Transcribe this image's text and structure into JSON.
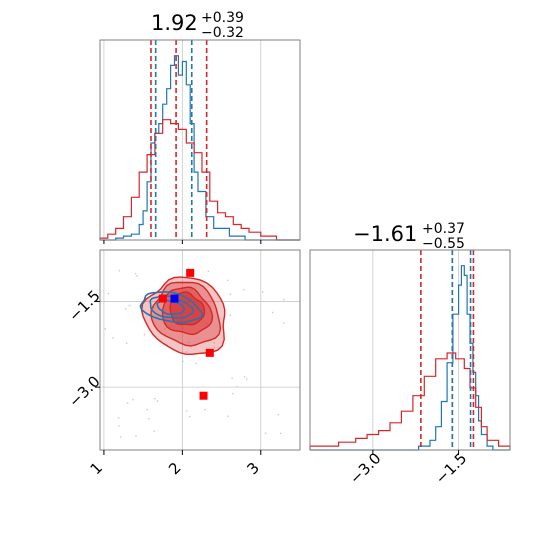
{
  "colors": {
    "posterior": "#d62728",
    "prior": "#1f77b4",
    "truth_marker": "#ff0000",
    "estimate_marker": "#0000ff",
    "grid": "#c8c8c8",
    "axes": "#808080"
  },
  "chart_data": [
    {
      "type": "corner",
      "panel": "histogram",
      "parameter_index": 0,
      "title": {
        "value": "1.92",
        "plus": "+0.39",
        "minus": "−0.32"
      },
      "xlim": [
        0.95,
        3.5
      ],
      "grid": true,
      "series": [
        {
          "color": "#1f77b4",
          "bin_edges": [
            0.95,
            1.15,
            1.25,
            1.35,
            1.45,
            1.5,
            1.55,
            1.6,
            1.65,
            1.7,
            1.75,
            1.8,
            1.85,
            1.9,
            1.95,
            2.0,
            2.05,
            2.1,
            2.15,
            2.2,
            2.3,
            2.4,
            2.6,
            2.8,
            3.5
          ],
          "density": [
            0.0,
            0.01,
            0.02,
            0.03,
            0.08,
            0.15,
            0.3,
            0.5,
            0.55,
            0.6,
            0.7,
            0.78,
            0.9,
            0.95,
            0.85,
            0.92,
            0.8,
            0.6,
            0.35,
            0.25,
            0.12,
            0.06,
            0.02,
            0.0
          ]
        },
        {
          "color": "#d62728",
          "bin_edges": [
            0.95,
            1.05,
            1.15,
            1.25,
            1.35,
            1.45,
            1.55,
            1.65,
            1.75,
            1.85,
            1.95,
            2.05,
            2.15,
            2.25,
            2.35,
            2.45,
            2.55,
            2.65,
            2.75,
            2.85,
            3.0,
            3.2,
            3.5
          ],
          "density": [
            0.01,
            0.03,
            0.06,
            0.12,
            0.22,
            0.35,
            0.44,
            0.55,
            0.62,
            0.6,
            0.57,
            0.5,
            0.45,
            0.35,
            0.2,
            0.14,
            0.12,
            0.08,
            0.06,
            0.04,
            0.02,
            0.0
          ]
        }
      ],
      "quantile_lines": [
        {
          "color": "#d62728",
          "x": [
            1.6,
            1.92,
            2.31
          ]
        },
        {
          "color": "#1f77b4",
          "x": [
            1.66,
            2.12
          ]
        }
      ]
    },
    {
      "type": "corner",
      "panel": "contour",
      "xlim": [
        0.95,
        3.5
      ],
      "ylim": [
        -4.1,
        -0.6
      ],
      "xticks": [
        "1",
        "2",
        "3"
      ],
      "yticks": [
        "−1.5",
        "−3.0"
      ],
      "grid": true,
      "posterior_region": {
        "center": [
          1.95,
          -1.55
        ],
        "spread_x": 0.9,
        "spread_y": 1.3
      },
      "prior_region": {
        "center": [
          1.9,
          -1.5
        ],
        "spread_x": 0.55,
        "spread_y": 0.5
      },
      "truth_points": [
        [
          2.1,
          -1.0
        ],
        [
          1.75,
          -1.45
        ],
        [
          2.35,
          -2.4
        ],
        [
          2.27,
          -3.15
        ]
      ],
      "estimate_point": [
        1.9,
        -1.45
      ]
    },
    {
      "type": "corner",
      "panel": "histogram",
      "parameter_index": 1,
      "title": {
        "value": "−1.61",
        "plus": "+0.37",
        "minus": "−0.55"
      },
      "xlim": [
        -4.1,
        -0.6
      ],
      "xticks": [
        "−3.0",
        "−1.5"
      ],
      "grid": true,
      "series": [
        {
          "color": "#1f77b4",
          "bin_edges": [
            -4.1,
            -2.2,
            -2.0,
            -1.9,
            -1.8,
            -1.7,
            -1.6,
            -1.5,
            -1.45,
            -1.4,
            -1.35,
            -1.3,
            -1.25,
            -1.2,
            -1.15,
            -1.1,
            -1.0,
            -0.9,
            -0.6
          ],
          "density": [
            0.0,
            0.02,
            0.05,
            0.12,
            0.25,
            0.45,
            0.7,
            0.85,
            0.95,
            0.9,
            0.7,
            0.55,
            0.4,
            0.28,
            0.15,
            0.08,
            0.02,
            0.0
          ]
        },
        {
          "color": "#d62728",
          "bin_edges": [
            -4.1,
            -3.6,
            -3.3,
            -3.1,
            -2.9,
            -2.7,
            -2.5,
            -2.3,
            -2.1,
            -1.9,
            -1.7,
            -1.55,
            -1.4,
            -1.3,
            -1.2,
            -1.1,
            -1.0,
            -0.8,
            -0.6
          ],
          "density": [
            0.02,
            0.04,
            0.06,
            0.08,
            0.1,
            0.14,
            0.2,
            0.28,
            0.38,
            0.47,
            0.5,
            0.47,
            0.42,
            0.32,
            0.22,
            0.12,
            0.05,
            0.02
          ]
        }
      ],
      "quantile_lines": [
        {
          "color": "#d62728",
          "x": [
            -2.16,
            -1.61,
            -1.24
          ]
        },
        {
          "color": "#1f77b4",
          "x": [
            -1.61,
            -1.29
          ]
        }
      ]
    }
  ]
}
